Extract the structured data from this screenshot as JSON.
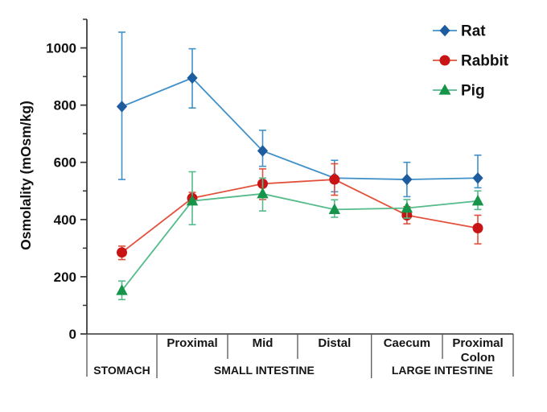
{
  "figure": {
    "background": "#ffffff",
    "description": "Line chart of gastrointestinal fluid osmolality by GI segment for three species"
  },
  "chart_data": {
    "type": "line",
    "title": "",
    "xlabel": "",
    "ylabel": "Osmolality (mOsm/kg)",
    "y_axis": {
      "min": 0,
      "max": 1100,
      "major_ticks": [
        0,
        200,
        400,
        600,
        800,
        1000
      ],
      "minor_ticks": [
        100,
        300,
        500,
        700,
        900,
        1100
      ],
      "grid": false
    },
    "x_axis": {
      "cells": [
        "",
        "Proximal",
        "Mid",
        "Distal",
        "Caecum",
        "Proximal\nColon"
      ],
      "groups": [
        {
          "label": "STOMACH",
          "start": 0,
          "end": 1
        },
        {
          "label": "SMALL INTESTINE",
          "start": 1,
          "end": 4
        },
        {
          "label": "LARGE INTESTINE",
          "start": 4,
          "end": 6
        }
      ]
    },
    "categories": [
      "Stomach",
      "Small intestine proximal",
      "Small intestine mid",
      "Small intestine distal",
      "Caecum",
      "Proximal colon"
    ],
    "series": [
      {
        "name": "Rat",
        "marker": "diamond",
        "color": "#1d5c9e",
        "line_color": "#4191c9",
        "points": [
          {
            "value": 795,
            "lo": 540,
            "hi": 1055
          },
          {
            "value": 895,
            "lo": 790,
            "hi": 997
          },
          {
            "value": 640,
            "lo": 586,
            "hi": 712
          },
          {
            "value": 545,
            "lo": 497,
            "hi": 607
          },
          {
            "value": 540,
            "lo": 480,
            "hi": 600
          },
          {
            "value": 545,
            "lo": 511,
            "hi": 625
          }
        ]
      },
      {
        "name": "Rabbit",
        "marker": "circle",
        "color": "#c81414",
        "line_color": "#e2503c",
        "points": [
          {
            "value": 285,
            "lo": 260,
            "hi": 307
          },
          {
            "value": 475,
            "lo": 455,
            "hi": 495
          },
          {
            "value": 525,
            "lo": 470,
            "hi": 577
          },
          {
            "value": 540,
            "lo": 485,
            "hi": 595
          },
          {
            "value": 415,
            "lo": 385,
            "hi": 445
          },
          {
            "value": 370,
            "lo": 315,
            "hi": 415
          }
        ]
      },
      {
        "name": "Pig",
        "marker": "triangle",
        "color": "#169449",
        "line_color": "#55bb8a",
        "points": [
          {
            "value": 152,
            "lo": 120,
            "hi": 185
          },
          {
            "value": 465,
            "lo": 382,
            "hi": 567
          },
          {
            "value": 490,
            "lo": 430,
            "hi": 545
          },
          {
            "value": 435,
            "lo": 408,
            "hi": 469
          },
          {
            "value": 440,
            "lo": 405,
            "hi": 470
          },
          {
            "value": 465,
            "lo": 435,
            "hi": 500
          }
        ]
      }
    ],
    "legend": {
      "position": "top-right",
      "entries": [
        "Rat",
        "Rabbit",
        "Pig"
      ]
    }
  }
}
